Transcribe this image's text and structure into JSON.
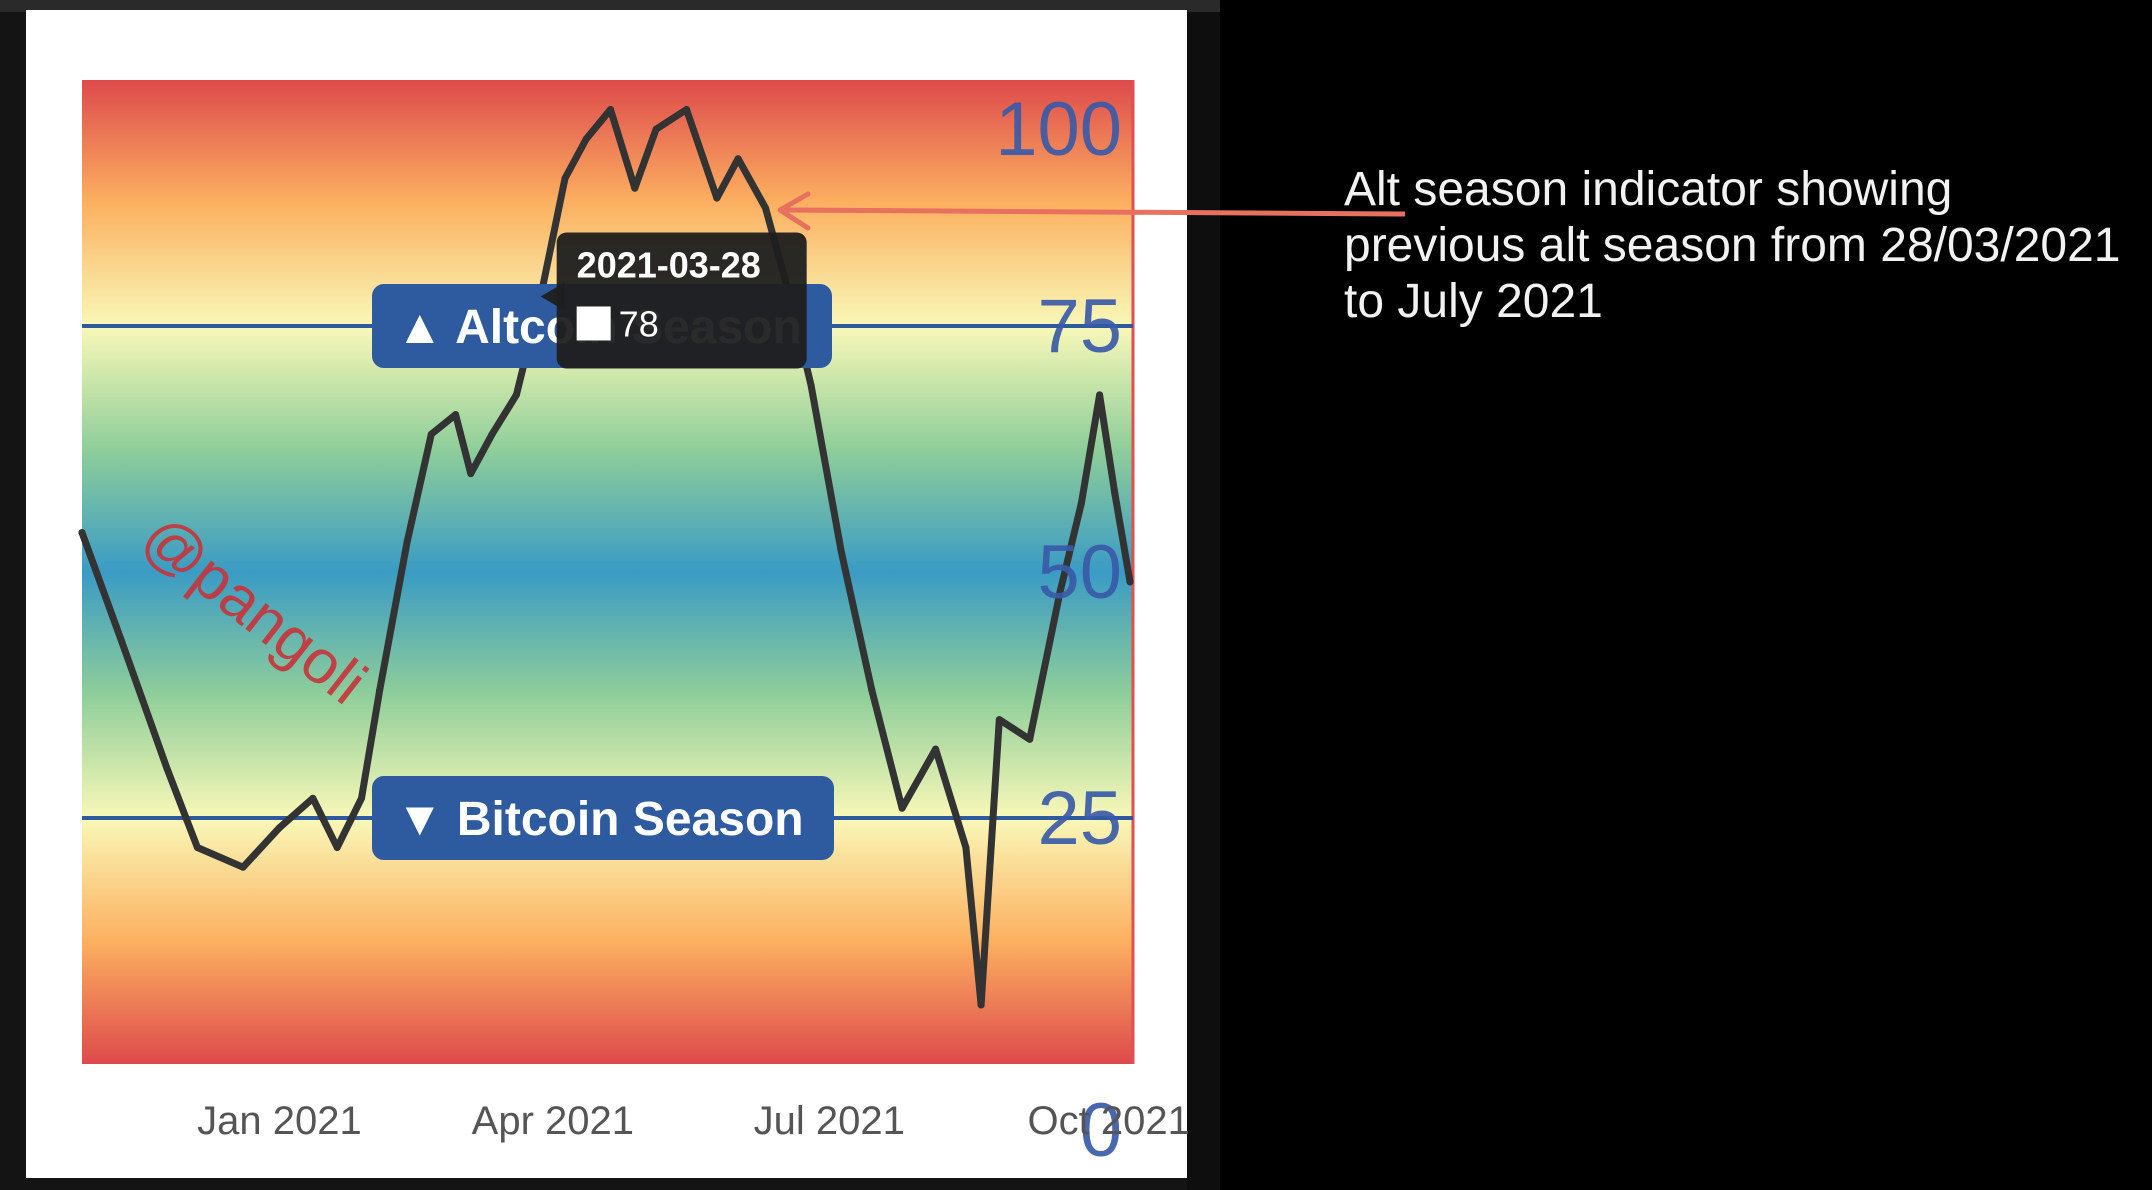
{
  "chart_data": {
    "type": "line",
    "series": [
      {
        "values": [
          {
            "x": "2020-10-28",
            "y": 54
          },
          {
            "x": "2020-11-10",
            "y": 43
          },
          {
            "x": "2020-11-25",
            "y": 30
          },
          {
            "x": "2020-12-05",
            "y": 22
          },
          {
            "x": "2020-12-20",
            "y": 20
          },
          {
            "x": "2021-01-01",
            "y": 24
          },
          {
            "x": "2021-01-12",
            "y": 27
          },
          {
            "x": "2021-01-20",
            "y": 22
          },
          {
            "x": "2021-01-28",
            "y": 27
          },
          {
            "x": "2021-02-03",
            "y": 38
          },
          {
            "x": "2021-02-12",
            "y": 53
          },
          {
            "x": "2021-02-20",
            "y": 64
          },
          {
            "x": "2021-02-28",
            "y": 66
          },
          {
            "x": "2021-03-05",
            "y": 60
          },
          {
            "x": "2021-03-12",
            "y": 64
          },
          {
            "x": "2021-03-20",
            "y": 68
          },
          {
            "x": "2021-03-28",
            "y": 78
          },
          {
            "x": "2021-04-05",
            "y": 90
          },
          {
            "x": "2021-04-12",
            "y": 94
          },
          {
            "x": "2021-04-20",
            "y": 97
          },
          {
            "x": "2021-04-28",
            "y": 89
          },
          {
            "x": "2021-05-05",
            "y": 95
          },
          {
            "x": "2021-05-15",
            "y": 97
          },
          {
            "x": "2021-05-25",
            "y": 88
          },
          {
            "x": "2021-06-01",
            "y": 92
          },
          {
            "x": "2021-06-10",
            "y": 87
          },
          {
            "x": "2021-06-18",
            "y": 78
          },
          {
            "x": "2021-06-25",
            "y": 69
          },
          {
            "x": "2021-07-05",
            "y": 52
          },
          {
            "x": "2021-07-15",
            "y": 38
          },
          {
            "x": "2021-07-25",
            "y": 26
          },
          {
            "x": "2021-08-05",
            "y": 32
          },
          {
            "x": "2021-08-15",
            "y": 22
          },
          {
            "x": "2021-08-20",
            "y": 6
          },
          {
            "x": "2021-08-26",
            "y": 35
          },
          {
            "x": "2021-09-05",
            "y": 33
          },
          {
            "x": "2021-09-15",
            "y": 48
          },
          {
            "x": "2021-09-22",
            "y": 57
          },
          {
            "x": "2021-09-28",
            "y": 68
          },
          {
            "x": "2021-10-03",
            "y": 58
          },
          {
            "x": "2021-10-08",
            "y": 49
          }
        ]
      }
    ],
    "xlim": [
      "2020-10-28",
      "2021-10-09"
    ],
    "ylim": [
      0,
      100
    ],
    "x_ticks": [
      {
        "date": "2021-01-01",
        "label": "Jan 2021"
      },
      {
        "date": "2021-04-01",
        "label": "Apr 2021"
      },
      {
        "date": "2021-07-01",
        "label": "Jul 2021"
      },
      {
        "date": "2021-10-01",
        "label": "Oct 2021"
      }
    ],
    "y_ticks": [
      {
        "value": 100,
        "label": "100"
      },
      {
        "value": 75,
        "label": "75"
      },
      {
        "value": 50,
        "label": "50"
      },
      {
        "value": 25,
        "label": "25"
      },
      {
        "value": 0,
        "label": "0"
      }
    ],
    "thresholds": [
      {
        "value": 75,
        "label": "▲ Altcoin Season",
        "color": "#2e5aa0"
      },
      {
        "value": 25,
        "label": "▼ Bitcoin Season",
        "color": "#2e5aa0"
      }
    ],
    "tooltip": {
      "date": "2021-03-28",
      "value": "78"
    },
    "background_gradient": [
      "#de4a4c",
      "#fcb060",
      "#f9f8b8",
      "#8fce9a",
      "#3a9bc4",
      "#8fce9a",
      "#f9f8b8",
      "#fcb060",
      "#de4a4c"
    ],
    "line_color": "#333333",
    "tick_color": "#3a5aa8",
    "watermark": "@pangoli"
  },
  "annotation": {
    "text": "Alt season indicator showing\nprevious alt season from 28/03/2021\nto July 2021",
    "arrow_color": "#e8705e"
  }
}
